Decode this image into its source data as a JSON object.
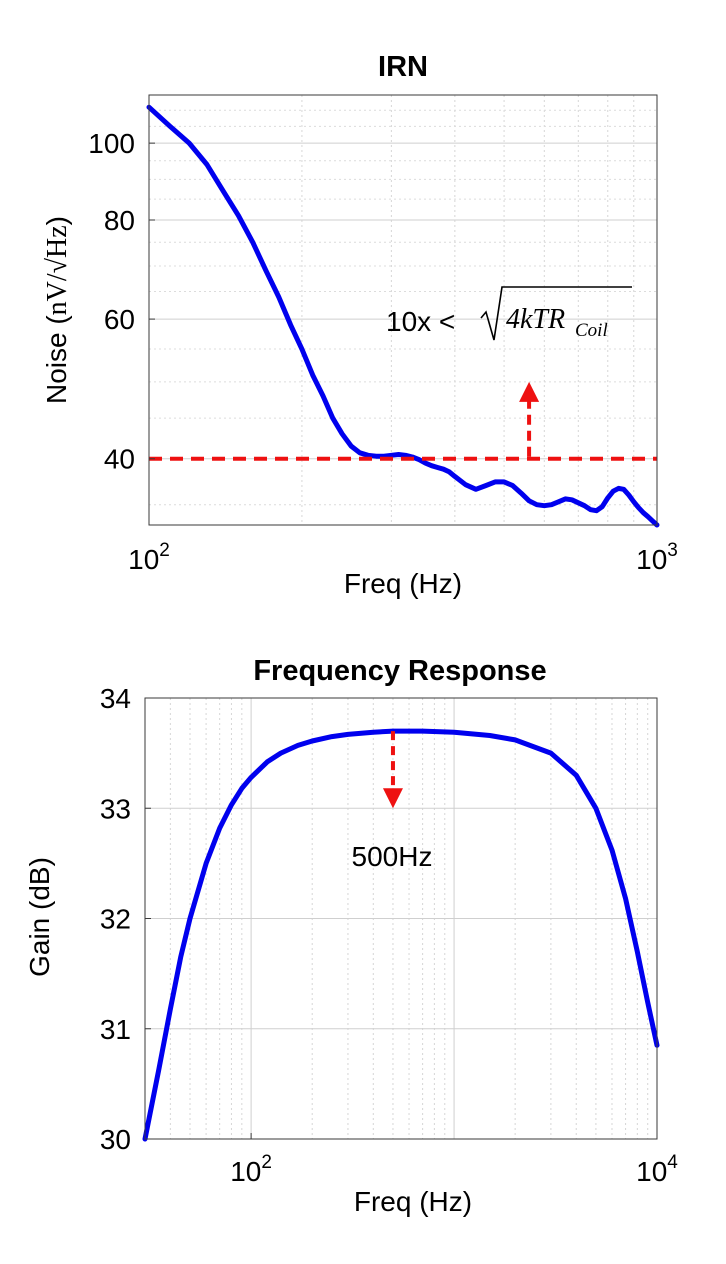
{
  "chart_data": [
    {
      "type": "line",
      "title": "IRN",
      "xlabel": "Freq (Hz)",
      "ylabel_prefix": "Noise",
      "ylabel_unit": "nV/√Hz",
      "xscale": "log",
      "yscale": "log",
      "xlim": [
        100,
        1000
      ],
      "ylim": [
        33,
        115
      ],
      "grid": true,
      "x_ticks": [
        {
          "value": 100,
          "base": "10",
          "exp": "2"
        },
        {
          "value": 1000,
          "base": "10",
          "exp": "3"
        }
      ],
      "y_ticks": [
        {
          "value": 40,
          "label": "40"
        },
        {
          "value": 60,
          "label": "60"
        },
        {
          "value": 80,
          "label": "80"
        },
        {
          "value": 100,
          "label": "100"
        }
      ],
      "series": [
        {
          "color": "#0000ee",
          "x": [
            100,
            110,
            120,
            130,
            140,
            150,
            160,
            170,
            180,
            190,
            200,
            210,
            220,
            230,
            240,
            250,
            260,
            270,
            280,
            290,
            300,
            310,
            320,
            330,
            340,
            350,
            360,
            370,
            380,
            390,
            400,
            420,
            440,
            460,
            480,
            500,
            520,
            540,
            560,
            580,
            600,
            620,
            640,
            660,
            680,
            700,
            720,
            740,
            760,
            780,
            800,
            820,
            840,
            860,
            880,
            900,
            920,
            940,
            960,
            980,
            1000
          ],
          "y": [
            111,
            105,
            100,
            94,
            87,
            81,
            75,
            69,
            64,
            59,
            55,
            51,
            48,
            45,
            43,
            41.5,
            40.7,
            40.4,
            40.3,
            40.3,
            40.4,
            40.5,
            40.4,
            40.2,
            39.9,
            39.5,
            39.2,
            39.0,
            38.8,
            38.5,
            38.0,
            37.1,
            36.6,
            37.0,
            37.4,
            37.4,
            37.0,
            36.2,
            35.4,
            35.0,
            34.9,
            35.0,
            35.3,
            35.6,
            35.5,
            35.2,
            34.9,
            34.5,
            34.4,
            34.8,
            35.7,
            36.4,
            36.7,
            36.6,
            36.0,
            35.3,
            34.7,
            34.2,
            33.8,
            33.4,
            33.0
          ]
        }
      ],
      "annotations": {
        "reference_value": 40,
        "arrow_x": 560,
        "arrow_from": 40,
        "arrow_to": 50,
        "text_prefix": "10x < ",
        "formula_main": "4kTR",
        "formula_sub": "Coil",
        "color": "#ee1111"
      }
    },
    {
      "type": "line",
      "title": "Frequency Response",
      "xlabel": "Freq (Hz)",
      "ylabel": "Gain (dB)",
      "xscale": "log",
      "xlim": [
        30,
        10000
      ],
      "ylim": [
        30,
        34
      ],
      "grid": true,
      "x_ticks": [
        {
          "value": 100,
          "base": "10",
          "exp": "2"
        },
        {
          "value": 10000,
          "base": "10",
          "exp": "4"
        }
      ],
      "y_ticks": [
        {
          "value": 30,
          "label": "30"
        },
        {
          "value": 31,
          "label": "31"
        },
        {
          "value": 32,
          "label": "32"
        },
        {
          "value": 33,
          "label": "33"
        },
        {
          "value": 34,
          "label": "34"
        }
      ],
      "series": [
        {
          "color": "#0000ee",
          "x": [
            30,
            35,
            40,
            45,
            50,
            60,
            70,
            80,
            90,
            100,
            120,
            140,
            170,
            200,
            250,
            300,
            400,
            500,
            700,
            1000,
            1500,
            2000,
            3000,
            4000,
            5000,
            6000,
            7000,
            8000,
            9000,
            10000
          ],
          "y": [
            30.0,
            30.62,
            31.18,
            31.65,
            32.0,
            32.5,
            32.82,
            33.03,
            33.18,
            33.28,
            33.42,
            33.5,
            33.57,
            33.61,
            33.65,
            33.67,
            33.69,
            33.7,
            33.7,
            33.69,
            33.66,
            33.62,
            33.5,
            33.3,
            33.0,
            32.62,
            32.18,
            31.7,
            31.24,
            30.85
          ]
        }
      ],
      "annotations": {
        "arrow_x": 500,
        "arrow_from": 33.7,
        "arrow_to": 33.0,
        "text": "500Hz",
        "color": "#ee1111"
      }
    }
  ]
}
